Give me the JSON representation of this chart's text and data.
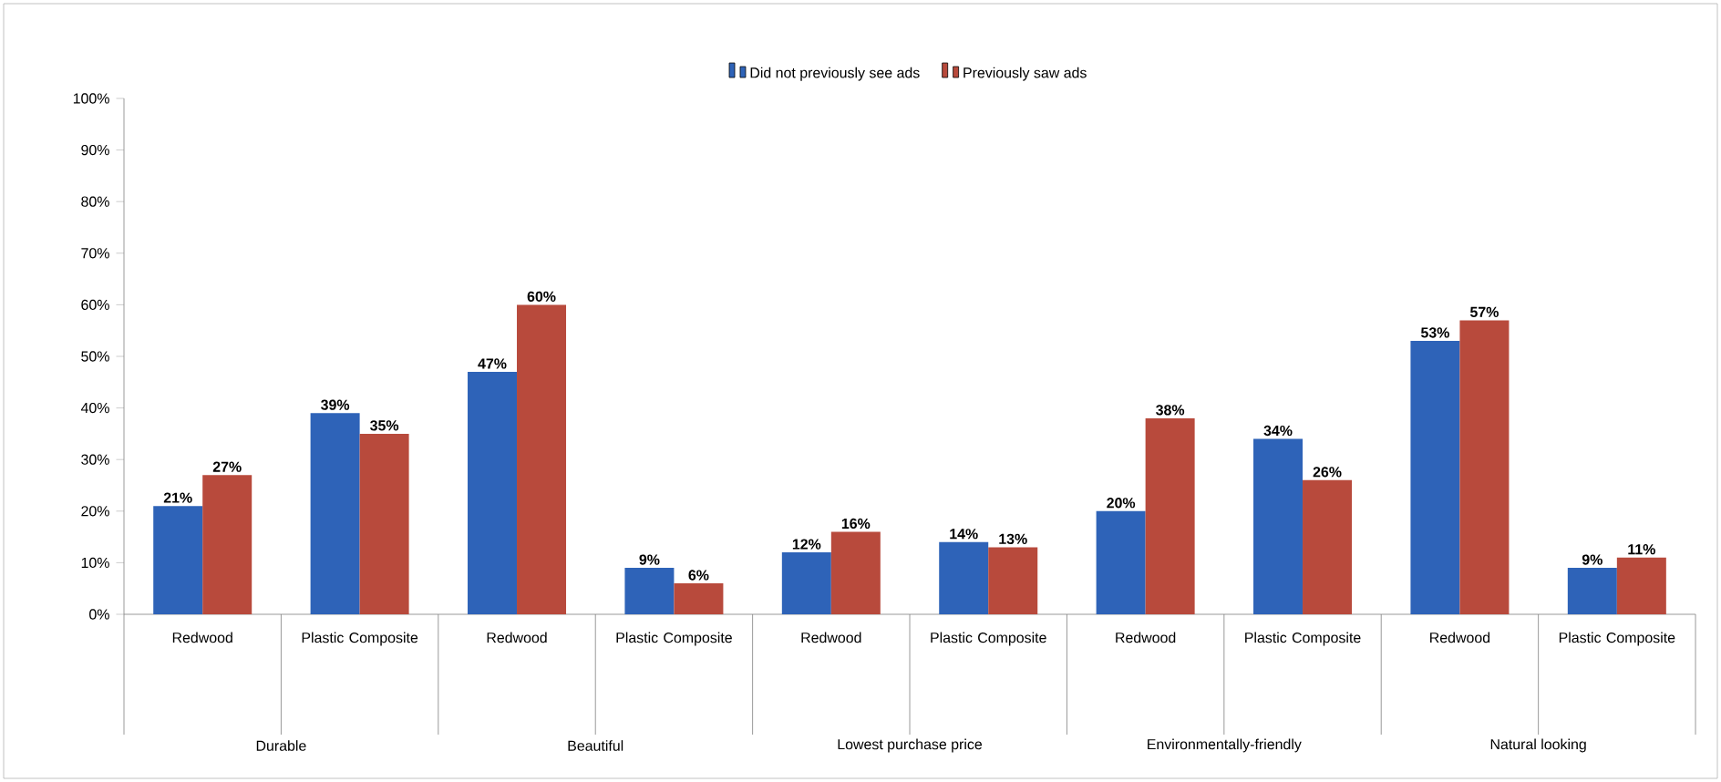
{
  "chart_data": {
    "type": "bar",
    "categories": [
      "Redwood",
      "Plastic Composite",
      "Redwood",
      "Plastic Composite",
      "Redwood",
      "Plastic Composite",
      "Redwood",
      "Plastic Composite",
      "Redwood",
      "Plastic Composite"
    ],
    "series": [
      {
        "name": "Did not previously see ads",
        "color": "#2e63b8",
        "values": [
          21,
          39,
          47,
          9,
          12,
          14,
          20,
          34,
          53,
          9
        ],
        "value_labels": [
          "21%",
          "39%",
          "47%",
          "9%",
          "12%",
          "14%",
          "20%",
          "34%",
          "53%",
          "9%"
        ]
      },
      {
        "name": "Previously saw ads",
        "color": "#b84a3c",
        "values": [
          27,
          35,
          60,
          6,
          16,
          13,
          38,
          26,
          57,
          11
        ],
        "value_labels": [
          "27%",
          "35%",
          "60%",
          "6%",
          "16%",
          "13%",
          "38%",
          "26%",
          "57%",
          "11%"
        ]
      }
    ],
    "ylim": [
      0,
      100
    ],
    "yticks": [
      {
        "value": 0,
        "label": "0%"
      },
      {
        "value": 10,
        "label": "10%"
      },
      {
        "value": 20,
        "label": "20%"
      },
      {
        "value": 30,
        "label": "30%"
      },
      {
        "value": 40,
        "label": "40%"
      },
      {
        "value": 50,
        "label": "50%"
      },
      {
        "value": 60,
        "label": "60%"
      },
      {
        "value": 70,
        "label": "70%"
      },
      {
        "value": 80,
        "label": "80%"
      },
      {
        "value": 90,
        "label": "90%"
      },
      {
        "value": 100,
        "label": "100%"
      }
    ],
    "annotations": [
      "Durable",
      "Beautiful",
      "Lowest purchase price",
      "Environmentally-friendly",
      "Natural looking"
    ],
    "legend": "top",
    "grid": false
  }
}
